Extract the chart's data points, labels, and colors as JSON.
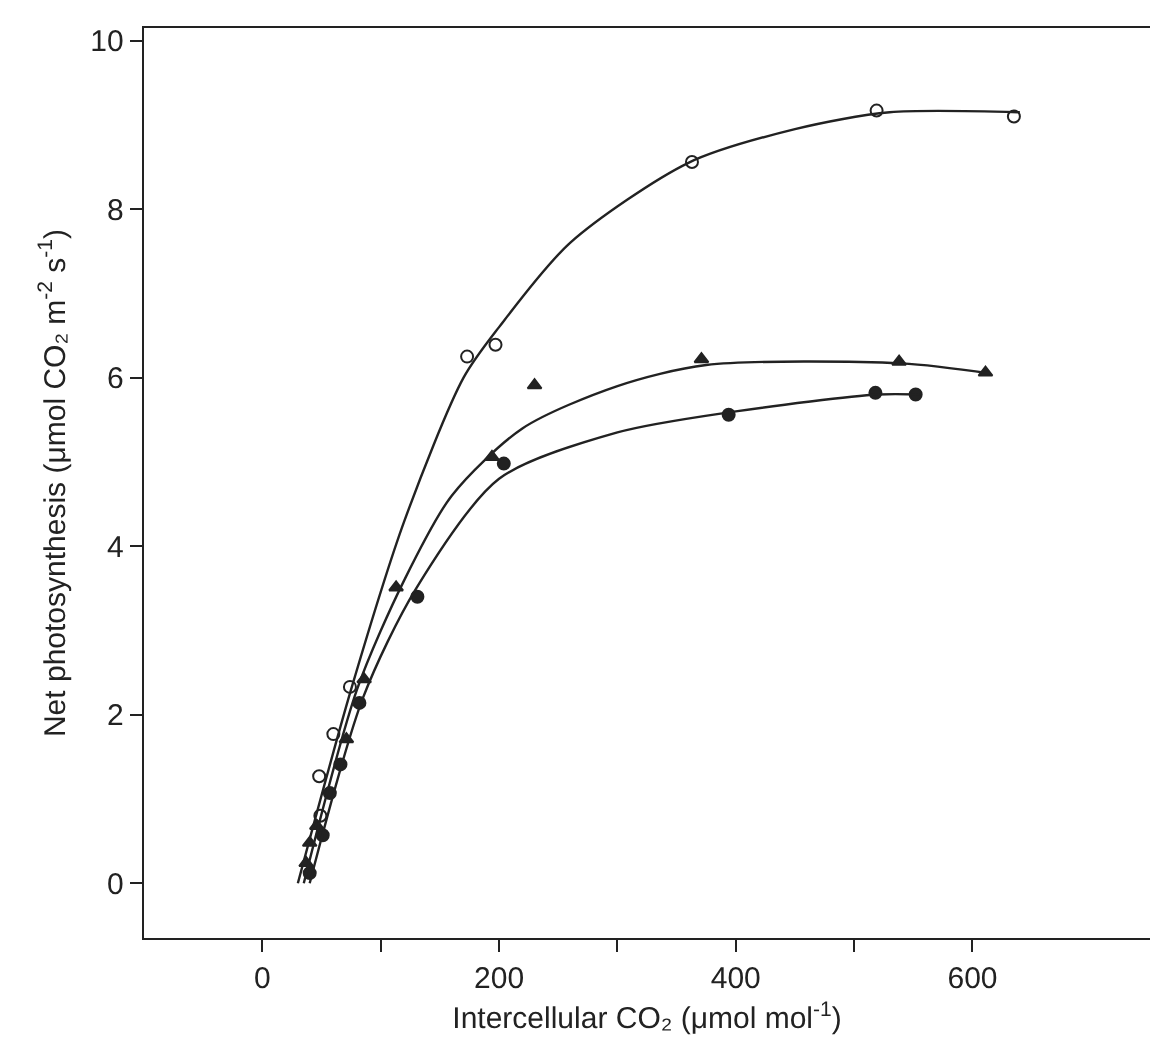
{
  "chart_data": {
    "type": "scatter",
    "xlabel": "Intercellular CO₂ (μmol mol$^{-1}$)",
    "ylabel": "Net photosynthesis (μmol CO₂ m$^{-2}$ s$^{-1}$)",
    "xlim": [
      -100,
      750
    ],
    "ylim": [
      -0.65,
      10.15
    ],
    "xticks": [
      0,
      {
        "value": 100,
        "label": null
      },
      200,
      {
        "value": 300,
        "label": null
      },
      400,
      {
        "value": 500,
        "label": null
      },
      600
    ],
    "yticks": [
      0,
      2,
      4,
      6,
      8,
      10
    ],
    "grid": false,
    "series": [
      {
        "marker": "circle",
        "color": "#ffffff",
        "x": [
          49,
          48,
          60,
          74,
          173,
          197,
          363,
          519,
          635
        ],
        "values": [
          0.8,
          1.27,
          1.77,
          2.33,
          6.25,
          6.39,
          8.56,
          9.17,
          9.1
        ]
      },
      {
        "marker": "triangle",
        "color": "#222222",
        "x": [
          37,
          40,
          46,
          71,
          86,
          113,
          194,
          230,
          371,
          538,
          611
        ],
        "values": [
          0.24,
          0.48,
          0.68,
          1.71,
          2.42,
          3.51,
          5.06,
          5.91,
          6.22,
          6.19,
          6.06
        ]
      },
      {
        "marker": "circle",
        "color": "#222222",
        "x": [
          40,
          51,
          57,
          66,
          82,
          131,
          204,
          394,
          518,
          552
        ],
        "values": [
          0.12,
          0.57,
          1.07,
          1.41,
          2.14,
          3.4,
          4.98,
          5.56,
          5.82,
          5.8
        ]
      },
      {
        "type": "line",
        "marker": "none",
        "line_style": "solid",
        "color": "#222222",
        "x": [
          30,
          75,
          120,
          170,
          200,
          260,
          360,
          450,
          530,
          640
        ],
        "values": [
          0,
          2.3,
          4.3,
          6.0,
          6.6,
          7.6,
          8.55,
          8.95,
          9.15,
          9.15
        ]
      },
      {
        "type": "line",
        "marker": "none",
        "line_style": "solid",
        "color": "#222222",
        "x": [
          35,
          80,
          120,
          160,
          220,
          300,
          375,
          540,
          615
        ],
        "values": [
          0,
          2.3,
          3.6,
          4.6,
          5.4,
          5.9,
          6.15,
          6.17,
          6.05
        ]
      },
      {
        "type": "line",
        "marker": "none",
        "line_style": "solid",
        "color": "#222222",
        "x": [
          40,
          85,
          130,
          200,
          300,
          400,
          520,
          555
        ],
        "values": [
          0,
          2.2,
          3.5,
          4.8,
          5.35,
          5.6,
          5.8,
          5.8
        ]
      }
    ]
  }
}
